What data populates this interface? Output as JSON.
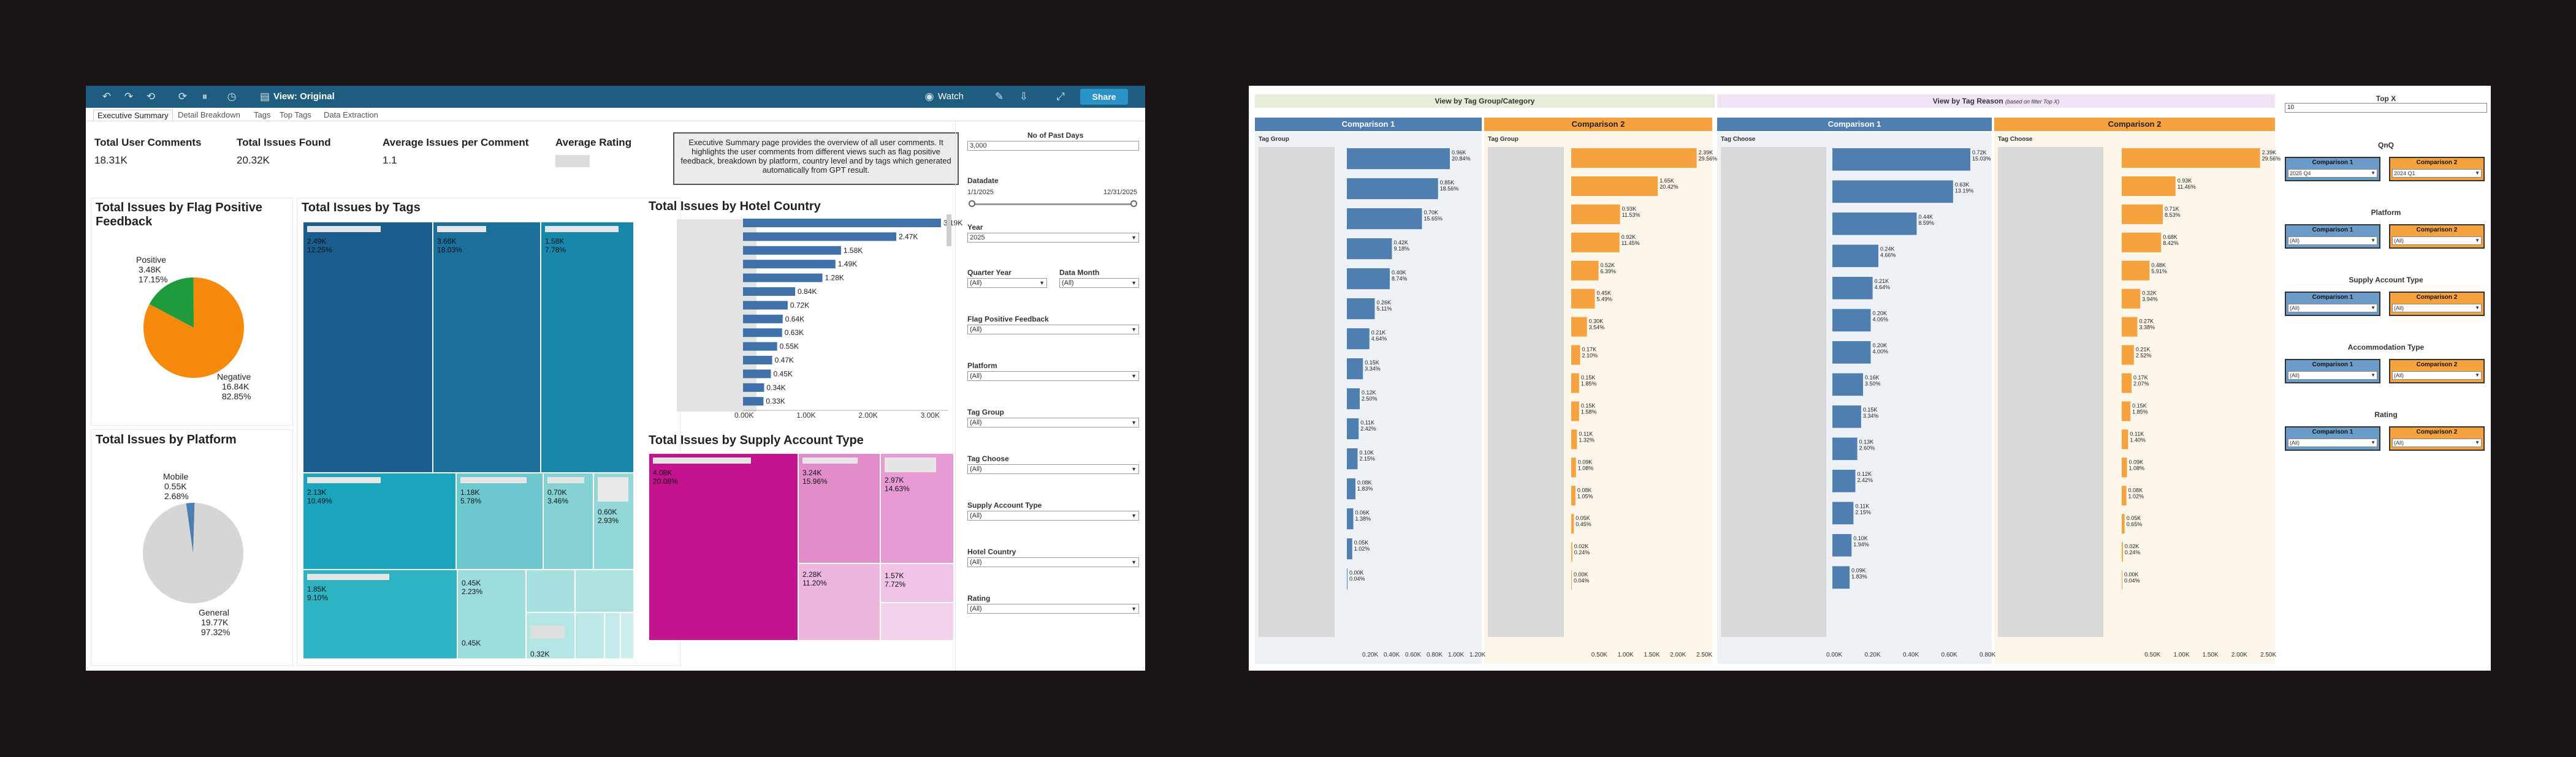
{
  "toolbar": {
    "view_label": "View: Original",
    "watch_label": "Watch",
    "share_label": "Share"
  },
  "tabs": [
    "Executive Summary",
    "Detail Breakdown",
    "Tags",
    "Top Tags",
    "Data Extraction"
  ],
  "kpis": [
    {
      "label": "Total User Comments",
      "value": "18.31K"
    },
    {
      "label": "Total Issues Found",
      "value": "20.32K"
    },
    {
      "label": "Average Issues per Comment",
      "value": "1.1"
    },
    {
      "label": "Average Rating",
      "value": ""
    }
  ],
  "summary_text": "Executive Summary page provides the overview of all user comments. It highlights the user comments from different views such as flag positive feedback, breakdown by platform, country level and by tags which generated automatically from GPT result.",
  "charts": {
    "flag_title": "Total Issues by Flag Positive Feedback",
    "platform_title": "Total Issues by Platform",
    "tags_title": "Total Issues by Tags",
    "country_title": "Total Issues by Hotel Country",
    "supply_title": "Total Issues by Supply Account Type"
  },
  "chart_data": [
    {
      "type": "pie",
      "title": "Total Issues by Flag Positive Feedback",
      "slices": [
        {
          "name": "Positive",
          "value": "3.48K",
          "pct": "17.15%",
          "share": 17.15,
          "color": "#1f9a3c"
        },
        {
          "name": "Negative",
          "value": "16.84K",
          "pct": "82.85%",
          "share": 82.85,
          "color": "#f7890c"
        }
      ]
    },
    {
      "type": "pie",
      "title": "Total Issues by Platform",
      "slices": [
        {
          "name": "Mobile",
          "value": "0.55K",
          "pct": "2.68%",
          "share": 2.68,
          "color": "#4a7fb0"
        },
        {
          "name": "General",
          "value": "19.77K",
          "pct": "97.32%",
          "share": 97.32,
          "color": "#d6d6d6"
        }
      ]
    },
    {
      "type": "bar",
      "title": "Total Issues by Hotel Country",
      "values": [
        3.19,
        2.47,
        1.58,
        1.49,
        1.28,
        0.84,
        0.72,
        0.64,
        0.63,
        0.55,
        0.47,
        0.45,
        0.34,
        0.33
      ],
      "labels": [
        "3.19K",
        "2.47K",
        "1.58K",
        "1.49K",
        "1.28K",
        "0.84K",
        "0.72K",
        "0.64K",
        "0.63K",
        "0.55K",
        "0.47K",
        "0.45K",
        "0.34K",
        "0.33K"
      ],
      "xticks": [
        "0.00K",
        "1.00K",
        "2.00K",
        "3.00K"
      ],
      "xlim": [
        0,
        3.3
      ]
    },
    {
      "type": "treemap",
      "title": "Total Issues by Tags",
      "cells": [
        {
          "label": "2.49K",
          "pct": "12.25%"
        },
        {
          "label": "3.66K",
          "pct": "18.03%"
        },
        {
          "label": "1.58K",
          "pct": "7.78%"
        },
        {
          "label": "2.13K",
          "pct": "10.49%"
        },
        {
          "label": "1.18K",
          "pct": "5.78%"
        },
        {
          "label": "0.70K",
          "pct": "3.46%"
        },
        {
          "label": "0.60K",
          "pct": "2.93%"
        },
        {
          "label": "1.85K",
          "pct": "9.10%"
        },
        {
          "label": "0.45K",
          "pct": "2.23%"
        },
        {
          "label": "0.45K",
          "pct": ""
        },
        {
          "label": "0.32K",
          "pct": ""
        }
      ]
    },
    {
      "type": "treemap",
      "title": "Total Issues by Supply Account Type",
      "cells": [
        {
          "label": "4.08K",
          "pct": "20.08%"
        },
        {
          "label": "3.24K",
          "pct": "15.96%"
        },
        {
          "label": "2.97K",
          "pct": "14.63%"
        },
        {
          "label": "2.28K",
          "pct": "11.20%"
        },
        {
          "label": "1.57K",
          "pct": "7.72%"
        }
      ]
    },
    {
      "type": "bar",
      "title": "View by Tag Group/Category",
      "comparison_1": {
        "values": [
          0.96,
          0.85,
          0.7,
          0.42,
          0.4,
          0.26,
          0.21,
          0.15,
          0.12,
          0.11,
          0.1,
          0.08,
          0.06,
          0.05,
          0.0
        ],
        "labels": [
          "0.96K",
          "0.85K",
          "0.70K",
          "0.42K",
          "0.40K",
          "0.26K",
          "0.21K",
          "0.15K",
          "0.12K",
          "0.11K",
          "0.10K",
          "0.08K",
          "0.06K",
          "0.05K",
          "0.00K"
        ],
        "pcts": [
          "20.84%",
          "18.56%",
          "15.65%",
          "9.18%",
          "8.74%",
          "5.11%",
          "4.64%",
          "3.34%",
          "2.50%",
          "2.42%",
          "2.15%",
          "1.83%",
          "1.38%",
          "1.02%",
          "0.04%"
        ],
        "xticks": [
          "0.20K",
          "0.40K",
          "0.60K",
          "0.80K",
          "1.00K",
          "1.20K"
        ]
      },
      "comparison_2": {
        "values": [
          2.39,
          1.65,
          0.93,
          0.92,
          0.52,
          0.45,
          0.3,
          0.17,
          0.15,
          0.15,
          0.11,
          0.09,
          0.08,
          0.05,
          0.02,
          0.0
        ],
        "labels": [
          "2.39K",
          "1.65K",
          "0.93K",
          "0.92K",
          "0.52K",
          "0.45K",
          "0.30K",
          "0.17K",
          "0.15K",
          "0.15K",
          "0.11K",
          "0.09K",
          "0.08K",
          "0.05K",
          "0.02K",
          "0.00K"
        ],
        "pcts": [
          "29.56%",
          "20.42%",
          "11.53%",
          "11.45%",
          "6.39%",
          "5.49%",
          "3.54%",
          "2.10%",
          "1.85%",
          "1.58%",
          "1.32%",
          "1.08%",
          "1.05%",
          "0.45%",
          "0.24%",
          "0.04%"
        ],
        "xticks": [
          "0.50K",
          "1.00K",
          "1.50K",
          "2.00K",
          "2.50K"
        ]
      }
    },
    {
      "type": "bar",
      "title": "View by Tag Reason",
      "comparison_1": {
        "values": [
          0.72,
          0.63,
          0.44,
          0.24,
          0.21,
          0.2,
          0.2,
          0.16,
          0.15,
          0.13,
          0.12,
          0.11,
          0.1,
          0.09
        ],
        "labels": [
          "0.72K",
          "0.63K",
          "0.44K",
          "0.24K",
          "0.21K",
          "0.20K",
          "0.20K",
          "0.16K",
          "0.15K",
          "0.13K",
          "0.12K",
          "0.11K",
          "0.10K",
          "0.09K"
        ],
        "pcts": [
          "15.03%",
          "13.19%",
          "8.59%",
          "4.66%",
          "4.64%",
          "4.06%",
          "4.00%",
          "3.50%",
          "3.34%",
          "2.60%",
          "2.42%",
          "2.15%",
          "1.94%",
          "1.83%"
        ],
        "xticks": [
          "0.00K",
          "0.20K",
          "0.40K",
          "0.60K",
          "0.80K"
        ]
      },
      "comparison_2": {
        "values": [
          2.39,
          0.93,
          0.71,
          0.68,
          0.48,
          0.32,
          0.27,
          0.21,
          0.17,
          0.15,
          0.11,
          0.09,
          0.08,
          0.05,
          0.02,
          0.0
        ],
        "labels": [
          "2.39K",
          "0.93K",
          "0.71K",
          "0.68K",
          "0.48K",
          "0.32K",
          "0.27K",
          "0.21K",
          "0.17K",
          "0.15K",
          "0.11K",
          "0.09K",
          "0.08K",
          "0.05K",
          "0.02K",
          "0.00K"
        ],
        "pcts": [
          "29.56%",
          "11.46%",
          "8.53%",
          "8.42%",
          "5.91%",
          "3.94%",
          "3.38%",
          "2.52%",
          "2.07%",
          "1.85%",
          "1.40%",
          "1.08%",
          "1.02%",
          "0.65%",
          "0.24%",
          "0.04%"
        ],
        "xticks": [
          "0.50K",
          "1.00K",
          "1.50K",
          "2.00K",
          "2.50K"
        ]
      }
    }
  ],
  "filters": {
    "past_days_label": "No of Past Days",
    "past_days_value": "3,000",
    "datadate_label": "Datadate",
    "date_start": "1/1/2025",
    "date_end": "12/31/2025",
    "year_label": "Year",
    "year_value": "2025",
    "quarter_label": "Quarter Year",
    "datamonth_label": "Data Month",
    "flag_label": "Flag Positive Feedback",
    "platform_label": "Platform",
    "taggroup_label": "Tag Group",
    "tagchoose_label": "Tag Choose",
    "supply_label": "Supply Account Type",
    "country_label": "Hotel Country",
    "rating_label": "Rating",
    "all_value": "(All)"
  },
  "panelB": {
    "group_header": "View by Tag Group/Category",
    "reason_header": "View by Tag Reason",
    "reason_note": "(based on filter Top X)",
    "topx_label": "Top X",
    "topx_value": "10",
    "comparison_1": "Comparison 1",
    "comparison_2": "Comparison 2",
    "tag_group": "Tag Group",
    "tag_choose": "Tag Choose",
    "sections": [
      {
        "title": "QnQ",
        "v1": "2025 Q4",
        "v2": "2024 Q1"
      },
      {
        "title": "Platform",
        "v1": "(All)",
        "v2": "(All)"
      },
      {
        "title": "Supply Account Type",
        "v1": "(All)",
        "v2": "(All)"
      },
      {
        "title": "Accommodation Type",
        "v1": "(All)",
        "v2": "(All)"
      },
      {
        "title": "Rating",
        "v1": "(All)",
        "v2": "(All)"
      }
    ]
  },
  "colors": {
    "toolbar": "#1f5d80",
    "tags_dark": "#1a5d8f",
    "tags_mid": "#1591ad",
    "tags_light": "#8fd6d6",
    "supply_dark": "#c5128f",
    "supply_light": "#e6a1d3",
    "cmp1": "#4f7eb1",
    "cmp2": "#f6a23e"
  }
}
